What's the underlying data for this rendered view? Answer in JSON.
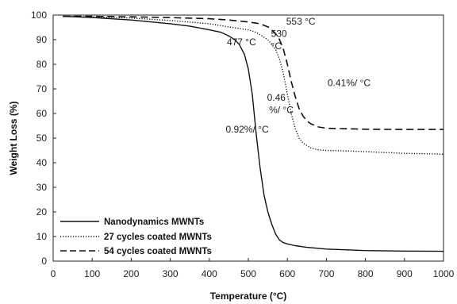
{
  "chart_data": {
    "type": "line",
    "xlabel": "Temperature (°C)",
    "ylabel": "Weight Loss (%)",
    "xlim": [
      0,
      1000
    ],
    "ylim": [
      0,
      100
    ],
    "x_ticks": [
      "0",
      "100",
      "200",
      "300",
      "400",
      "500",
      "600",
      "700",
      "800",
      "900",
      "1000"
    ],
    "y_ticks": [
      "0",
      "10",
      "20",
      "30",
      "40",
      "50",
      "60",
      "70",
      "80",
      "90",
      "100"
    ],
    "grid": false,
    "legend_position": "bottom-left",
    "series": [
      {
        "name": "Nanodynamics MWNTs",
        "style": "solid",
        "x": [
          25,
          100,
          200,
          300,
          350,
          400,
          430,
          450,
          465,
          477,
          490,
          500,
          510,
          520,
          530,
          540,
          550,
          560,
          570,
          580,
          590,
          600,
          620,
          650,
          700,
          800,
          900,
          1000
        ],
        "y": [
          99.5,
          99,
          98,
          96.5,
          95.5,
          94,
          93,
          91.5,
          90,
          88,
          84,
          78,
          68,
          52,
          38,
          27,
          20,
          15,
          11,
          8.5,
          7.5,
          7,
          6.3,
          5.6,
          4.9,
          4.3,
          4.1,
          4
        ]
      },
      {
        "name": "27 cycles coated MWNTs",
        "style": "dotted",
        "x": [
          25,
          100,
          200,
          300,
          400,
          450,
          500,
          520,
          530,
          550,
          570,
          580,
          590,
          600,
          610,
          620,
          630,
          640,
          660,
          680,
          700,
          750,
          800,
          900,
          1000
        ],
        "y": [
          99.5,
          99.3,
          98.8,
          97.8,
          96.5,
          95.2,
          94,
          93,
          92,
          90,
          86,
          82,
          76,
          68,
          60,
          54,
          50,
          48,
          46,
          45.2,
          45,
          44.8,
          44.5,
          43.8,
          43.5
        ]
      },
      {
        "name": "54 cycles coated MWNTs",
        "style": "dashed",
        "x": [
          25,
          100,
          200,
          300,
          400,
          450,
          500,
          530,
          553,
          570,
          580,
          590,
          600,
          610,
          620,
          630,
          640,
          650,
          660,
          680,
          700,
          750,
          800,
          900,
          1000
        ],
        "y": [
          99.5,
          99.5,
          99.3,
          99,
          98.5,
          98,
          97.2,
          96.5,
          95,
          92.5,
          90,
          86,
          80,
          73,
          67,
          62,
          59,
          57,
          55.8,
          54.5,
          54,
          53.8,
          53.6,
          53.5,
          53.5
        ]
      }
    ],
    "annotations": [
      {
        "text": "477 °C",
        "x": 445,
        "y": 89
      },
      {
        "text": "530",
        "x": 558,
        "y": 92.5
      },
      {
        "text": "°C",
        "x": 558,
        "y": 87.5
      },
      {
        "text": "553 °C",
        "x": 597,
        "y": 97.5
      },
      {
        "text": "0.41%/ °C",
        "x": 703,
        "y": 72.5
      },
      {
        "text": "0.46",
        "x": 548,
        "y": 66.5
      },
      {
        "text": "%/ °C",
        "x": 553,
        "y": 61.5
      },
      {
        "text": "0.92%/ °C",
        "x": 442,
        "y": 53.5
      }
    ]
  }
}
